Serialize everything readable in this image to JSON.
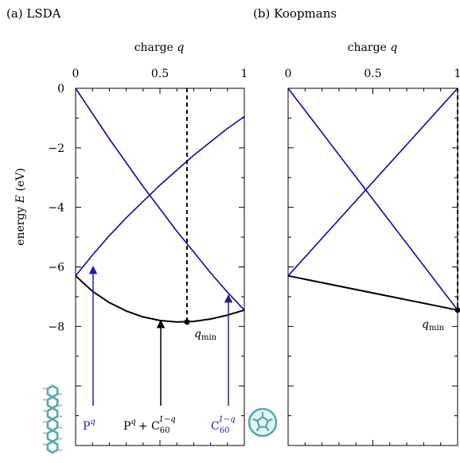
{
  "panels": {
    "a_label": "(a) LSDA",
    "b_label": "(b) Koopmans"
  },
  "axes": {
    "top_label": "charge",
    "top_label_var": "q",
    "y_label_prefix": "energy",
    "y_label_var": "E",
    "y_label_unit": "(eV)"
  },
  "annotations": {
    "qmin_base": "q",
    "qmin_sub": "min",
    "P_base": "P",
    "P_sup": "q",
    "mix_P": "P",
    "mix_P_sup": "q",
    "mix_plus": "+ C",
    "mix_C_sub": "60",
    "mix_C_sup": "1−q",
    "C_base": "C",
    "C_sub": "60",
    "C_sup": "1−q"
  },
  "colors": {
    "curve_blue": "#0a0aa0",
    "curve_black": "#000000",
    "arrow_blue": "#1a1ad0",
    "arrow_navy": "#24247a",
    "label_blue": "#1a1ad0",
    "molecule": "#4fa8b0"
  },
  "chart_data": [
    {
      "panel": "(a) LSDA",
      "type": "line",
      "xlabel": "charge q",
      "ylabel": "energy E (eV)",
      "xlim": [
        0,
        1
      ],
      "ylim": [
        -12,
        0
      ],
      "xticks": [
        0,
        0.5,
        1
      ],
      "xtick_labels": [
        "0",
        "0.5",
        "1"
      ],
      "yticks": [
        0,
        -2,
        -4,
        -6,
        -8
      ],
      "ytick_labels": [
        "0",
        "−2",
        "−4",
        "−6",
        "−8"
      ],
      "grid": false,
      "series": [
        {
          "x": [
            0,
            0.1,
            0.2,
            0.3,
            0.4,
            0.5,
            0.6,
            0.7,
            0.8,
            0.9,
            1.0
          ],
          "y": [
            -6.3,
            -5.6,
            -4.95,
            -4.35,
            -3.8,
            -3.25,
            -2.75,
            -2.25,
            -1.8,
            -1.35,
            -0.95
          ]
        },
        {
          "x": [
            0,
            0.1,
            0.2,
            0.3,
            0.4,
            0.5,
            0.6,
            0.7,
            0.8,
            0.9,
            1.0
          ],
          "y": [
            0,
            -0.85,
            -1.7,
            -2.5,
            -3.3,
            -4.05,
            -4.8,
            -5.5,
            -6.2,
            -6.85,
            -7.45
          ]
        },
        {
          "x": [
            0,
            0.1,
            0.2,
            0.3,
            0.4,
            0.5,
            0.6,
            0.7,
            0.8,
            0.9,
            1.0
          ],
          "y": [
            -6.3,
            -6.82,
            -7.2,
            -7.48,
            -7.68,
            -7.8,
            -7.85,
            -7.83,
            -7.75,
            -7.62,
            -7.45
          ]
        }
      ],
      "q_min": 0.66,
      "E_min": -7.85
    },
    {
      "panel": "(b) Koopmans",
      "type": "line",
      "xlabel": "charge q",
      "xlim": [
        0,
        1
      ],
      "ylim": [
        -12,
        0
      ],
      "xticks": [
        0,
        0.5,
        1
      ],
      "xtick_labels": [
        "0",
        "0.5",
        "1"
      ],
      "grid": false,
      "series": [
        {
          "x": [
            0,
            1
          ],
          "y": [
            -6.3,
            0
          ]
        },
        {
          "x": [
            0,
            1
          ],
          "y": [
            0,
            -7.45
          ]
        },
        {
          "x": [
            0,
            1
          ],
          "y": [
            -6.3,
            -7.45
          ]
        }
      ],
      "q_min": 1.0,
      "E_min": -7.45
    }
  ]
}
